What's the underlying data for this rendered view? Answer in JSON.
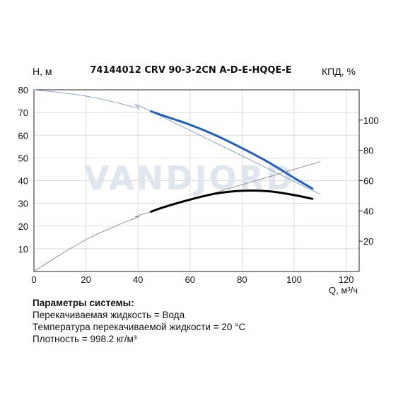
{
  "chart_data": {
    "type": "line",
    "title": "74144012 CRV 90-3-2CN A-D-E-HQQE-E",
    "watermark": "VANDJORD",
    "xlabel": "Q, м³/ч",
    "ylabel_left": "H, м",
    "ylabel_right": "КПД, %",
    "xlim": [
      0,
      125
    ],
    "ylim_left": [
      0,
      80
    ],
    "ylim_right": [
      0,
      120
    ],
    "x_ticks": [
      "0",
      "20",
      "40",
      "60",
      "80",
      "100",
      "120"
    ],
    "y_left_ticks": [
      "10",
      "20",
      "30",
      "40",
      "50",
      "60",
      "70",
      "80"
    ],
    "y_right_ticks": [
      "20",
      "40",
      "60",
      "80",
      "100"
    ],
    "grid": true,
    "series": [
      {
        "axis": "left",
        "color": "#1f5fbf",
        "thin_x": [
          0,
          10,
          20,
          30,
          40,
          45,
          110
        ],
        "thin_y": [
          80,
          78.8,
          77.2,
          74.8,
          71.9,
          70.5,
          34
        ],
        "thick_x": [
          45,
          50,
          60,
          70,
          80,
          90,
          100,
          107
        ],
        "thick_y": [
          70.5,
          68.5,
          64.6,
          59.9,
          54.3,
          48.2,
          41.2,
          36.5
        ]
      },
      {
        "axis": "right",
        "color": "#000000",
        "thin_x": [
          0,
          10,
          20,
          30,
          40,
          45,
          110
        ],
        "thin_y": [
          0,
          11,
          21,
          29,
          36,
          39.5,
          72.5
        ],
        "thick_x": [
          45,
          50,
          60,
          70,
          80,
          90,
          100,
          107
        ],
        "thick_y": [
          39.5,
          42.5,
          47.5,
          51.5,
          53.3,
          53,
          50.5,
          48
        ]
      }
    ]
  },
  "params": {
    "header": "Параметры системы:",
    "lines": [
      "Перекачиваемая жидкость = Вода",
      "Температура перекачиваемой жидкости = 20 °C",
      "Плотность = 998.2 кг/м³"
    ]
  }
}
